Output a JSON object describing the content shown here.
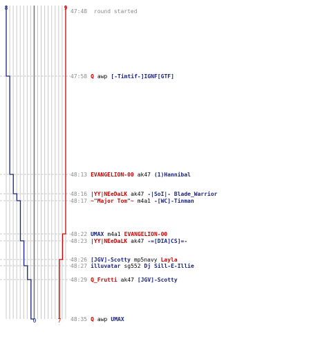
{
  "colors": {
    "blue_team": "#1a237e",
    "red_team": "#cc0000",
    "grid": "#c8c8c8",
    "mid_line": "#7a7a7a",
    "dash": "#c8c8c8",
    "time_text": "#8a8a8a"
  },
  "counts": {
    "blue_start": "8",
    "red_start": "9",
    "blue_end": "0",
    "red_end": "7"
  },
  "start_event": {
    "time": "47:48",
    "text": "round started"
  },
  "events": [
    {
      "time": "47:58",
      "killer": "Q",
      "killer_team": "red",
      "weapon": "awp",
      "victim": "[-Timtif-]IGNF[GTF]",
      "victim_team": "blue",
      "blue_alive": 7,
      "red_alive": 9
    },
    {
      "time": "48:13",
      "killer": "EVANGELION-00",
      "killer_team": "red",
      "weapon": "ak47",
      "victim": "(1)Hannibal",
      "victim_team": "blue",
      "blue_alive": 6,
      "red_alive": 9
    },
    {
      "time": "48:16",
      "killer": "|YY|NEeDaLK",
      "killer_team": "red",
      "weapon": "ak47",
      "victim": "-|SoI|- Blade_Warrior",
      "victim_team": "blue",
      "blue_alive": 5,
      "red_alive": 9
    },
    {
      "time": "48:17",
      "killer": "~\"Major Tom\"~",
      "killer_team": "red",
      "weapon": "m4a1",
      "victim": "-[WC]-Tinman",
      "victim_team": "blue",
      "blue_alive": 4,
      "red_alive": 9
    },
    {
      "time": "48:22",
      "killer": "UMAX",
      "killer_team": "blue",
      "weapon": "m4a1",
      "victim": "EVANGELION-00",
      "victim_team": "red",
      "blue_alive": 4,
      "red_alive": 8
    },
    {
      "time": "48:23",
      "killer": "|YY|NEeDaLK",
      "killer_team": "red",
      "weapon": "ak47",
      "victim": "-=[DIA]CS]=-",
      "victim_team": "blue",
      "blue_alive": 3,
      "red_alive": 8
    },
    {
      "time": "48:26",
      "killer": "[JGV]-Scotty",
      "killer_team": "blue",
      "weapon": "mp5navy",
      "victim": "Layla",
      "victim_team": "red",
      "blue_alive": 3,
      "red_alive": 7
    },
    {
      "time": "48:27",
      "killer": "illuvatar",
      "killer_team": "blue",
      "weapon": "sg552",
      "victim": "Dj Sill-E-Illie",
      "victim_team": "blue",
      "blue_alive": 2,
      "red_alive": 7
    },
    {
      "time": "48:29",
      "killer": "Q_Frutti",
      "killer_team": "red",
      "weapon": "ak47",
      "victim": "[JGV]-Scotty",
      "victim_team": "blue",
      "blue_alive": 1,
      "red_alive": 7
    },
    {
      "time": "48:35",
      "killer": "Q",
      "killer_team": "red",
      "weapon": "awp",
      "victim": "UMAX",
      "victim_team": "blue",
      "blue_alive": 0,
      "red_alive": 7
    }
  ]
}
